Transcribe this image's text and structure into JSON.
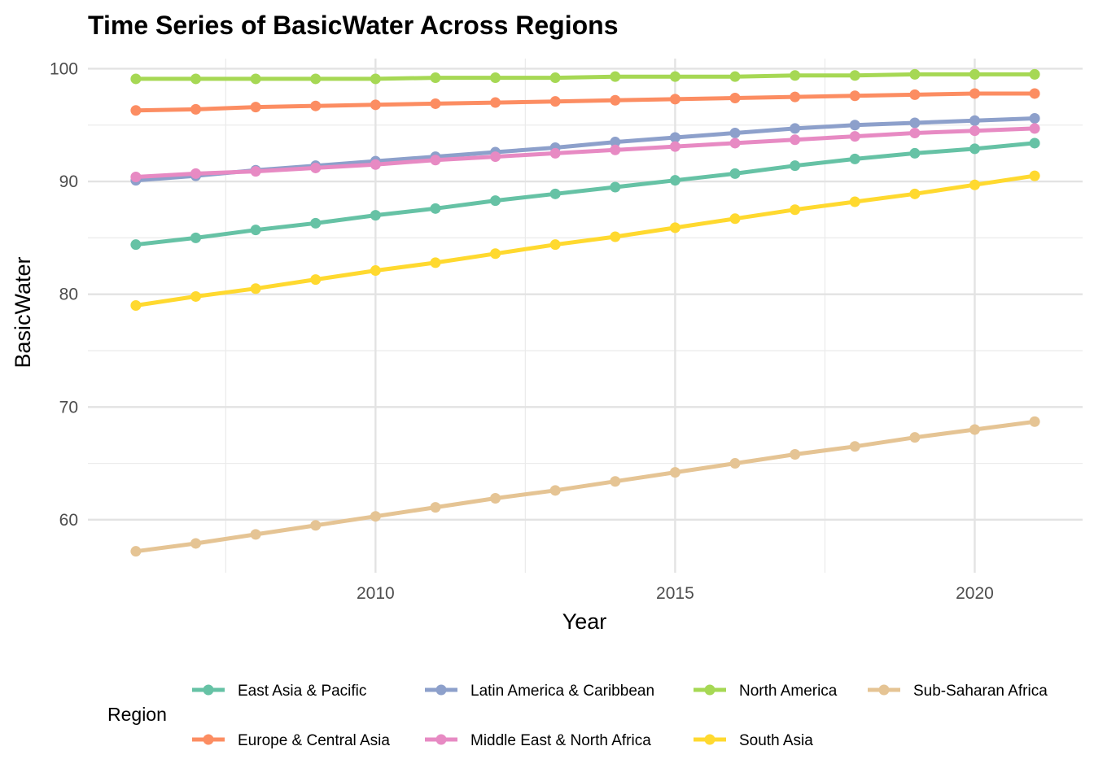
{
  "chart_data": {
    "type": "line",
    "title": "Time Series of BasicWater Across Regions",
    "xlabel": "Year",
    "ylabel": "BasicWater",
    "x": [
      2006,
      2007,
      2008,
      2009,
      2010,
      2011,
      2012,
      2013,
      2014,
      2015,
      2016,
      2017,
      2018,
      2019,
      2020,
      2021
    ],
    "xlim": [
      2005.2,
      2021.8
    ],
    "ylim": [
      55.3,
      100.9
    ],
    "x_ticks": [
      2010,
      2015,
      2020
    ],
    "x_tick_labels": [
      "2010",
      "2015",
      "2020"
    ],
    "y_ticks": [
      60,
      70,
      80,
      90,
      100
    ],
    "y_tick_labels": [
      "60",
      "70",
      "80",
      "90",
      "100"
    ],
    "grid": true,
    "legend_title": "Region",
    "legend_position": "bottom",
    "series": [
      {
        "name": "East Asia & Pacific",
        "color": "#66c2a5",
        "values": [
          84.4,
          85.0,
          85.7,
          86.3,
          87.0,
          87.6,
          88.3,
          88.9,
          89.5,
          90.1,
          90.7,
          91.4,
          92.0,
          92.5,
          92.9,
          93.4
        ]
      },
      {
        "name": "Europe & Central Asia",
        "color": "#fc8d62",
        "values": [
          96.3,
          96.4,
          96.6,
          96.7,
          96.8,
          96.9,
          97.0,
          97.1,
          97.2,
          97.3,
          97.4,
          97.5,
          97.6,
          97.7,
          97.8,
          97.8
        ]
      },
      {
        "name": "Latin America & Caribbean",
        "color": "#8da0cb",
        "values": [
          90.1,
          90.5,
          91.0,
          91.4,
          91.8,
          92.2,
          92.6,
          93.0,
          93.5,
          93.9,
          94.3,
          94.7,
          95.0,
          95.2,
          95.4,
          95.6
        ]
      },
      {
        "name": "Middle East & North Africa",
        "color": "#e78ac3",
        "values": [
          90.4,
          90.7,
          90.9,
          91.2,
          91.5,
          91.9,
          92.2,
          92.5,
          92.8,
          93.1,
          93.4,
          93.7,
          94.0,
          94.3,
          94.5,
          94.7
        ]
      },
      {
        "name": "North America",
        "color": "#a6d854",
        "values": [
          99.1,
          99.1,
          99.1,
          99.1,
          99.1,
          99.2,
          99.2,
          99.2,
          99.3,
          99.3,
          99.3,
          99.4,
          99.4,
          99.5,
          99.5,
          99.5
        ]
      },
      {
        "name": "South Asia",
        "color": "#ffd92f",
        "values": [
          79.0,
          79.8,
          80.5,
          81.3,
          82.1,
          82.8,
          83.6,
          84.4,
          85.1,
          85.9,
          86.7,
          87.5,
          88.2,
          88.9,
          89.7,
          90.5
        ]
      },
      {
        "name": "Sub-Saharan Africa",
        "color": "#e5c494",
        "values": [
          57.2,
          57.9,
          58.7,
          59.5,
          60.3,
          61.1,
          61.9,
          62.6,
          63.4,
          64.2,
          65.0,
          65.8,
          66.5,
          67.3,
          68.0,
          68.7
        ]
      }
    ],
    "legend_order": [
      "East Asia & Pacific",
      "Europe & Central Asia",
      "Latin America & Caribbean",
      "Middle East & North Africa",
      "North America",
      "South Asia",
      "Sub-Saharan Africa"
    ]
  }
}
